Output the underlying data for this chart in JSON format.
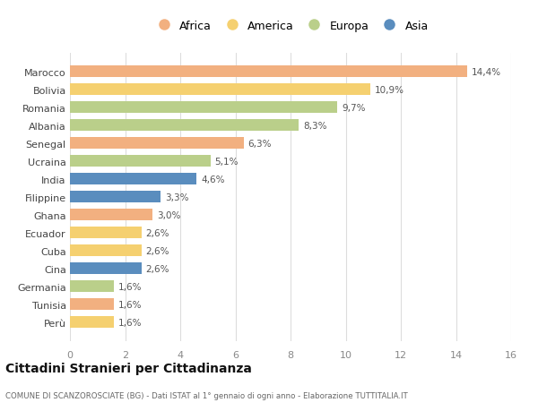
{
  "categories": [
    "Marocco",
    "Bolivia",
    "Romania",
    "Albania",
    "Senegal",
    "Ucraina",
    "India",
    "Filippine",
    "Ghana",
    "Ecuador",
    "Cuba",
    "Cina",
    "Germania",
    "Tunisia",
    "Perù"
  ],
  "values": [
    14.4,
    10.9,
    9.7,
    8.3,
    6.3,
    5.1,
    4.6,
    3.3,
    3.0,
    2.6,
    2.6,
    2.6,
    1.6,
    1.6,
    1.6
  ],
  "labels": [
    "14,4%",
    "10,9%",
    "9,7%",
    "8,3%",
    "6,3%",
    "5,1%",
    "4,6%",
    "3,3%",
    "3,0%",
    "2,6%",
    "2,6%",
    "2,6%",
    "1,6%",
    "1,6%",
    "1,6%"
  ],
  "continents": [
    "Africa",
    "America",
    "Europa",
    "Europa",
    "Africa",
    "Europa",
    "Asia",
    "Asia",
    "Africa",
    "America",
    "America",
    "Asia",
    "Europa",
    "Africa",
    "America"
  ],
  "colors": {
    "Africa": "#F2B080",
    "America": "#F5D070",
    "Europa": "#BACF8A",
    "Asia": "#5A8DBE"
  },
  "legend_order": [
    "Africa",
    "America",
    "Europa",
    "Asia"
  ],
  "xlim": [
    0,
    16
  ],
  "xticks": [
    0,
    2,
    4,
    6,
    8,
    10,
    12,
    14,
    16
  ],
  "title": "Cittadini Stranieri per Cittadinanza",
  "subtitle": "COMUNE DI SCANZOROSCIATE (BG) - Dati ISTAT al 1° gennaio di ogni anno - Elaborazione TUTTITALIA.IT",
  "background_color": "#ffffff",
  "grid_color": "#dddddd",
  "bar_height": 0.65
}
